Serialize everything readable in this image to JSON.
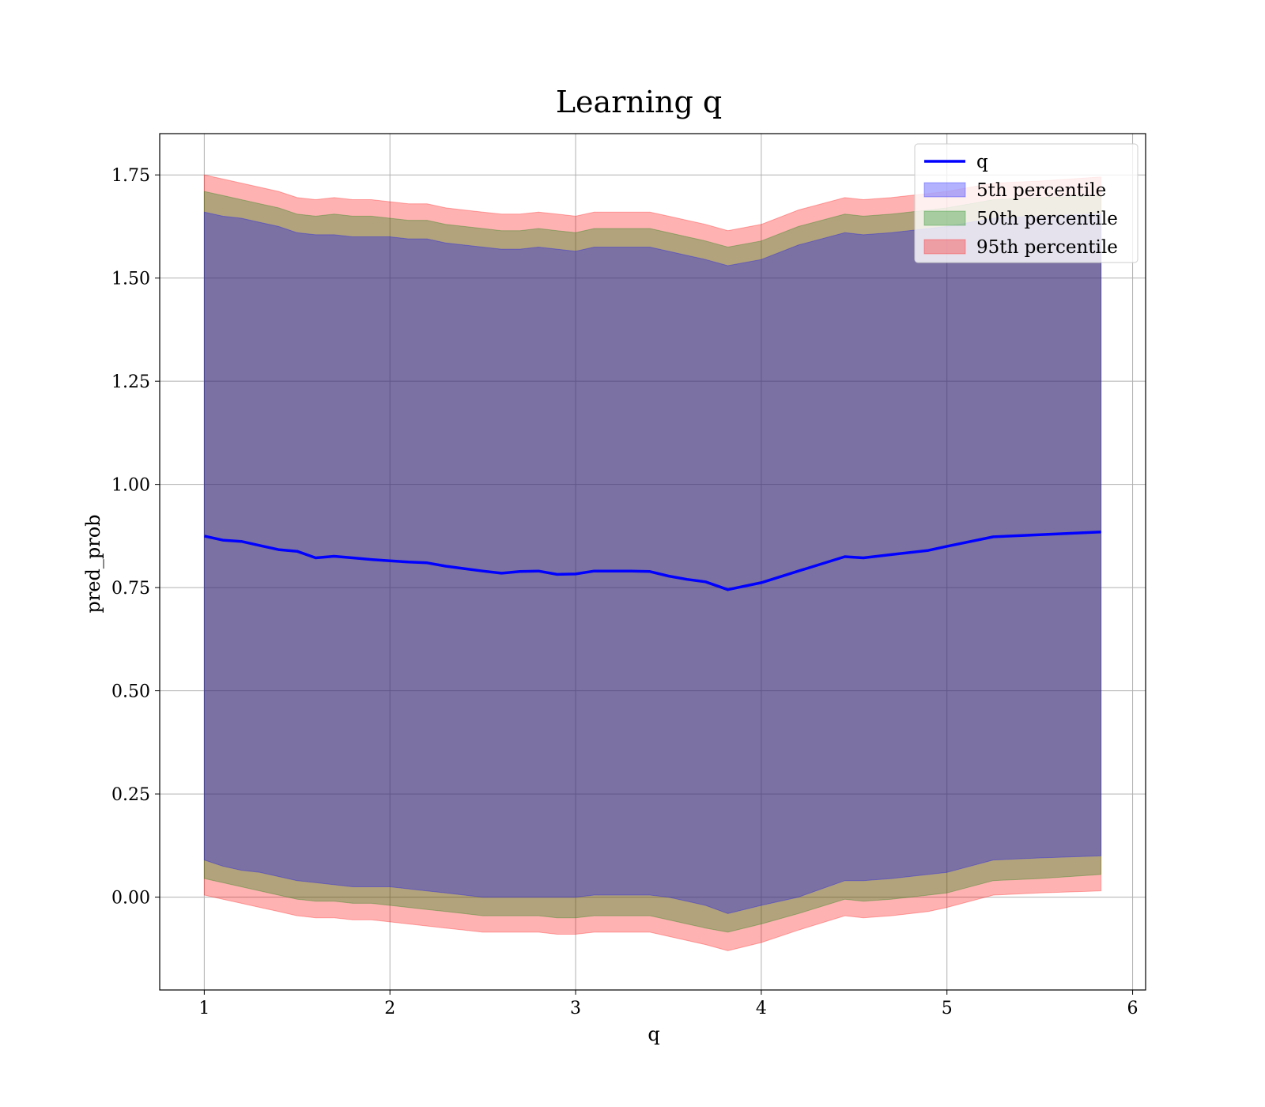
{
  "chart_data": {
    "type": "area",
    "title": "Learning q",
    "xlabel": "q",
    "ylabel": "pred_prob",
    "xlim": [
      0.76,
      6.07
    ],
    "ylim": [
      -0.225,
      1.85
    ],
    "xticks": [
      "1",
      "2",
      "3",
      "4",
      "5",
      "6"
    ],
    "yticks": [
      "0.00",
      "0.25",
      "0.50",
      "0.75",
      "1.00",
      "1.25",
      "1.50",
      "1.75"
    ],
    "grid": true,
    "legend_position": "top-right",
    "x": [
      1.0,
      1.1,
      1.2,
      1.3,
      1.4,
      1.5,
      1.6,
      1.7,
      1.8,
      1.9,
      2.0,
      2.1,
      2.2,
      2.3,
      2.4,
      2.5,
      2.6,
      2.7,
      2.8,
      2.9,
      3.0,
      3.1,
      3.2,
      3.3,
      3.4,
      3.5,
      3.6,
      3.7,
      3.82,
      4.0,
      4.2,
      4.45,
      4.55,
      4.7,
      4.9,
      5.0,
      5.25,
      5.5,
      5.83
    ],
    "series": [
      {
        "name": "q",
        "kind": "line",
        "color": "#0000ff",
        "values": [
          0.875,
          0.865,
          0.862,
          0.852,
          0.842,
          0.838,
          0.822,
          0.826,
          0.822,
          0.818,
          0.815,
          0.812,
          0.81,
          0.802,
          0.796,
          0.79,
          0.785,
          0.789,
          0.79,
          0.782,
          0.783,
          0.79,
          0.79,
          0.79,
          0.789,
          0.778,
          0.77,
          0.764,
          0.745,
          0.762,
          0.79,
          0.825,
          0.822,
          0.83,
          0.84,
          0.85,
          0.873,
          0.878,
          0.885
        ]
      },
      {
        "name": "5th percentile",
        "kind": "band",
        "color": "#0000ff",
        "lower": [
          0.09,
          0.075,
          0.065,
          0.06,
          0.05,
          0.04,
          0.035,
          0.03,
          0.025,
          0.025,
          0.025,
          0.02,
          0.015,
          0.01,
          0.005,
          0.0,
          0.0,
          0.0,
          0.0,
          0.0,
          0.0,
          0.005,
          0.005,
          0.005,
          0.005,
          0.0,
          -0.01,
          -0.02,
          -0.04,
          -0.02,
          0.0,
          0.04,
          0.04,
          0.045,
          0.055,
          0.06,
          0.09,
          0.095,
          0.1
        ],
        "upper": [
          1.66,
          1.65,
          1.645,
          1.635,
          1.625,
          1.61,
          1.605,
          1.605,
          1.6,
          1.6,
          1.6,
          1.595,
          1.595,
          1.585,
          1.58,
          1.575,
          1.57,
          1.57,
          1.575,
          1.57,
          1.565,
          1.575,
          1.575,
          1.575,
          1.575,
          1.565,
          1.555,
          1.545,
          1.53,
          1.545,
          1.58,
          1.61,
          1.605,
          1.61,
          1.62,
          1.625,
          1.645,
          1.65,
          1.655
        ]
      },
      {
        "name": "50th percentile",
        "kind": "band",
        "color": "#008000",
        "lower": [
          0.045,
          0.035,
          0.025,
          0.015,
          0.005,
          -0.005,
          -0.01,
          -0.01,
          -0.015,
          -0.015,
          -0.02,
          -0.025,
          -0.03,
          -0.035,
          -0.04,
          -0.045,
          -0.045,
          -0.045,
          -0.045,
          -0.05,
          -0.05,
          -0.045,
          -0.045,
          -0.045,
          -0.045,
          -0.055,
          -0.065,
          -0.075,
          -0.085,
          -0.065,
          -0.04,
          -0.005,
          -0.01,
          -0.005,
          0.005,
          0.01,
          0.04,
          0.045,
          0.055
        ],
        "upper": [
          1.71,
          1.7,
          1.69,
          1.68,
          1.67,
          1.655,
          1.65,
          1.655,
          1.65,
          1.65,
          1.645,
          1.64,
          1.64,
          1.63,
          1.625,
          1.62,
          1.615,
          1.615,
          1.62,
          1.615,
          1.61,
          1.62,
          1.62,
          1.62,
          1.62,
          1.61,
          1.6,
          1.59,
          1.575,
          1.59,
          1.625,
          1.655,
          1.65,
          1.655,
          1.665,
          1.67,
          1.69,
          1.695,
          1.7
        ]
      },
      {
        "name": "95th percentile",
        "kind": "band",
        "color": "#ff0000",
        "lower": [
          0.005,
          -0.005,
          -0.015,
          -0.025,
          -0.035,
          -0.045,
          -0.05,
          -0.05,
          -0.055,
          -0.055,
          -0.06,
          -0.065,
          -0.07,
          -0.075,
          -0.08,
          -0.085,
          -0.085,
          -0.085,
          -0.085,
          -0.09,
          -0.09,
          -0.085,
          -0.085,
          -0.085,
          -0.085,
          -0.095,
          -0.105,
          -0.115,
          -0.13,
          -0.11,
          -0.08,
          -0.045,
          -0.05,
          -0.045,
          -0.035,
          -0.025,
          0.005,
          0.01,
          0.015
        ],
        "upper": [
          1.75,
          1.74,
          1.73,
          1.72,
          1.71,
          1.695,
          1.69,
          1.695,
          1.69,
          1.69,
          1.685,
          1.68,
          1.68,
          1.67,
          1.665,
          1.66,
          1.655,
          1.655,
          1.66,
          1.655,
          1.65,
          1.66,
          1.66,
          1.66,
          1.66,
          1.65,
          1.64,
          1.63,
          1.615,
          1.63,
          1.665,
          1.695,
          1.69,
          1.695,
          1.705,
          1.71,
          1.73,
          1.735,
          1.745
        ]
      }
    ]
  }
}
